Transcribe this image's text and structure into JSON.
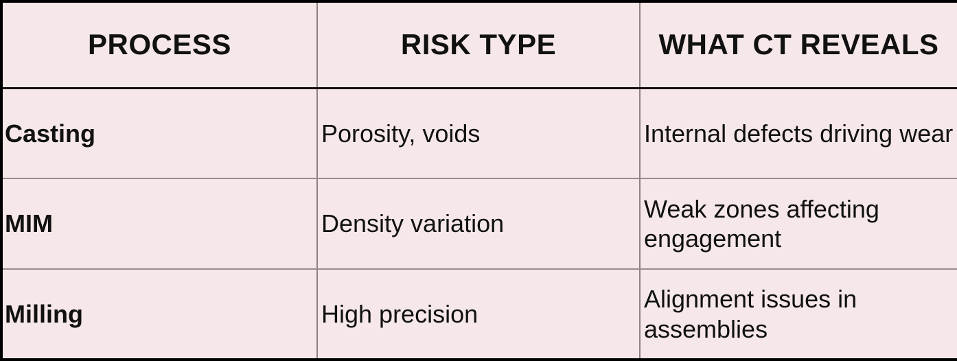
{
  "colors": {
    "cell_background": "#f6e8e8",
    "outer_border": "#000000",
    "header_separator": "#161010",
    "grid_line": "#8d8181",
    "text": "#111111"
  },
  "table": {
    "columns": [
      {
        "key": "process",
        "label": "PROCESS"
      },
      {
        "key": "risk_type",
        "label": "RISK TYPE"
      },
      {
        "key": "ct_reveals",
        "label": "WHAT CT REVEALS"
      }
    ],
    "rows": [
      {
        "process": "Casting",
        "risk_type": "Porosity, voids",
        "ct_reveals": "Internal defects driving wear"
      },
      {
        "process": "MIM",
        "risk_type": "Density variation",
        "ct_reveals": "Weak zones affecting engagement"
      },
      {
        "process": "Milling",
        "risk_type": "High precision",
        "ct_reveals": "Alignment issues in assemblies"
      }
    ]
  }
}
